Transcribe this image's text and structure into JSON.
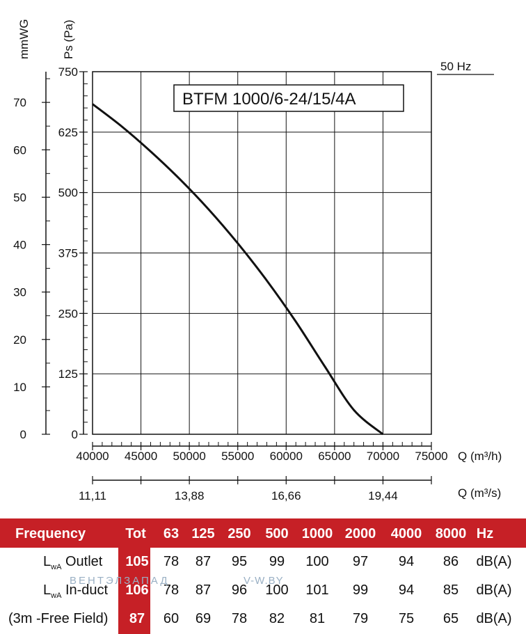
{
  "chart_data": {
    "type": "line",
    "model": "BTFM 1000/6-24/15/4A",
    "frequency_label": "50 Hz",
    "xlabel": "Q (m³/h)",
    "ylabel": "Ps (Pa)",
    "y2label": "mmWG",
    "x2label": "Q (m³/s)",
    "xlim": [
      40000,
      75000
    ],
    "ylim": [
      0,
      750
    ],
    "x_ticks": [
      "40000",
      "45000",
      "50000",
      "55000",
      "60000",
      "65000",
      "70000",
      "75000"
    ],
    "y_ticks": [
      "0",
      "125",
      "250",
      "375",
      "500",
      "625",
      "750"
    ],
    "mmwg_ticks": [
      "0",
      "10",
      "20",
      "30",
      "40",
      "50",
      "60",
      "70"
    ],
    "ms_ticks": [
      "11,11",
      "13,88",
      "16,66",
      "19,44"
    ],
    "grid": true,
    "series": [
      {
        "x": [
          40000,
          43000,
          46000,
          49000,
          52000,
          55000,
          58000,
          61000,
          64000,
          67000,
          70000
        ],
        "y": [
          683,
          637,
          585,
          528,
          465,
          395,
          318,
          233,
          140,
          50,
          0
        ]
      }
    ]
  },
  "table": {
    "header": {
      "frequency": "Frequency",
      "tot": "Tot",
      "bands": [
        "63",
        "125",
        "250",
        "500",
        "1000",
        "2000",
        "4000",
        "8000"
      ],
      "unit": "Hz"
    },
    "rows": [
      {
        "l": "L",
        "sub": "wA",
        "label": "Outlet",
        "tot": "105",
        "values": [
          "78",
          "87",
          "95",
          "99",
          "100",
          "97",
          "94",
          "86"
        ],
        "unit": "dB(A)"
      },
      {
        "l": "L",
        "sub": "wA",
        "label": "In-duct",
        "tot": "106",
        "values": [
          "78",
          "87",
          "96",
          "100",
          "101",
          "99",
          "94",
          "85"
        ],
        "unit": "dB(A)"
      },
      {
        "l": "",
        "sub": "",
        "label": "(3m -Free Field)",
        "tot": "87",
        "values": [
          "60",
          "69",
          "78",
          "82",
          "81",
          "79",
          "75",
          "65"
        ],
        "unit": "dB(A)"
      }
    ],
    "watermark_left": "ВЕНТЭЛЗАПАД",
    "watermark_right": "V-W.BY"
  }
}
